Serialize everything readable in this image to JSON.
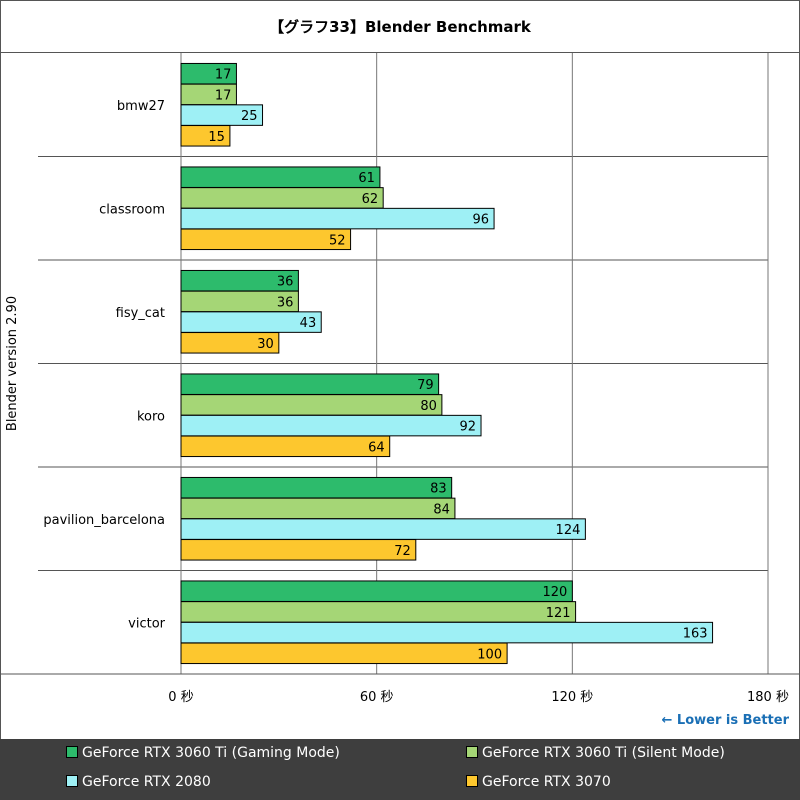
{
  "title": "【グラフ33】Blender Benchmark",
  "note": "← Lower is Better",
  "chart_data": {
    "type": "bar",
    "orientation": "horizontal",
    "title": "【グラフ33】Blender Benchmark",
    "ylabel": "Blender version 2.90",
    "xlabel": "",
    "categories": [
      "bmw27",
      "classroom",
      "fisy_cat",
      "koro",
      "pavilion_barcelona",
      "victor"
    ],
    "series": [
      {
        "name": "GeForce RTX 3060 Ti (Gaming Mode)",
        "color": "#2dbb6c",
        "values": [
          17,
          61,
          36,
          79,
          83,
          120
        ]
      },
      {
        "name": "GeForce RTX 3060 Ti (Silent Mode)",
        "color": "#a5d676",
        "values": [
          17,
          62,
          36,
          80,
          84,
          121
        ]
      },
      {
        "name": "GeForce RTX 2080",
        "color": "#9ef0f5",
        "values": [
          25,
          96,
          43,
          92,
          124,
          163
        ]
      },
      {
        "name": "GeForce RTX 3070",
        "color": "#fdc72e",
        "values": [
          15,
          52,
          30,
          64,
          72,
          100
        ]
      }
    ],
    "xlim": [
      0,
      180
    ],
    "xticks": [
      0,
      60,
      120,
      180
    ],
    "xtick_labels": [
      "0 秒",
      "60 秒",
      "120 秒",
      "180 秒"
    ],
    "grid": true,
    "legend_position": "bottom"
  }
}
